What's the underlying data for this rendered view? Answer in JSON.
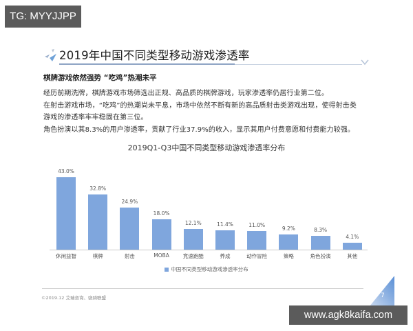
{
  "watermarks": {
    "top_left": "TG: MYYJJPP",
    "bottom_right": "www.agk8kaifa.com"
  },
  "header": {
    "title": "2019年中国不同类型移动游戏渗透率",
    "icon": "arrow-shard-icon",
    "chevron_icon": "chevron-down-icon"
  },
  "body": {
    "subtitle": "棋牌游戏依然强势 “吃鸡”热潮未平",
    "lines": [
      "经历前期洗牌，棋牌游戏市场筛选出正规、高品质的棋牌游戏，玩家渗透率仍居行业第二位。",
      "在射击游戏市场，“吃鸡”的热潮尚未平息，市场中依然不断有新的高品质射击类游戏出现，使得射击类",
      "游戏的渗透率牢牢稳固在第三位。",
      "角色扮演以其8.3%的用户渗透率，贡献了行业37.9%的收入，显示其用户付费意愿和付费能力较强。"
    ]
  },
  "chart_data": {
    "type": "bar",
    "title": "2019Q1-Q3中国不同类型移动游戏渗透率分布",
    "categories": [
      "休闲益智",
      "棋牌",
      "射击",
      "MOBA",
      "竞速跑酷",
      "养成",
      "动作冒险",
      "策略",
      "角色扮演",
      "其他"
    ],
    "values": [
      43.0,
      32.8,
      24.9,
      18.0,
      12.1,
      11.4,
      11.0,
      9.2,
      8.3,
      4.1
    ],
    "value_labels": [
      "43.0%",
      "32.8%",
      "24.9%",
      "18.0%",
      "12.1%",
      "11.4%",
      "11.0%",
      "9.2%",
      "8.3%",
      "4.1%"
    ],
    "series": [
      {
        "name": "中国不同类型移动游戏渗透率分布",
        "values": [
          43.0,
          32.8,
          24.9,
          18.0,
          12.1,
          11.4,
          11.0,
          9.2,
          8.3,
          4.1
        ]
      }
    ],
    "xlabel": "",
    "ylabel": "",
    "ylim": [
      0,
      45
    ],
    "grid": false,
    "legend_position": "bottom",
    "bar_color": "#7fa6dd"
  },
  "footer": {
    "source": "©2019.12  艾瑞咨询、骁骑联盟",
    "page_number": "7"
  }
}
